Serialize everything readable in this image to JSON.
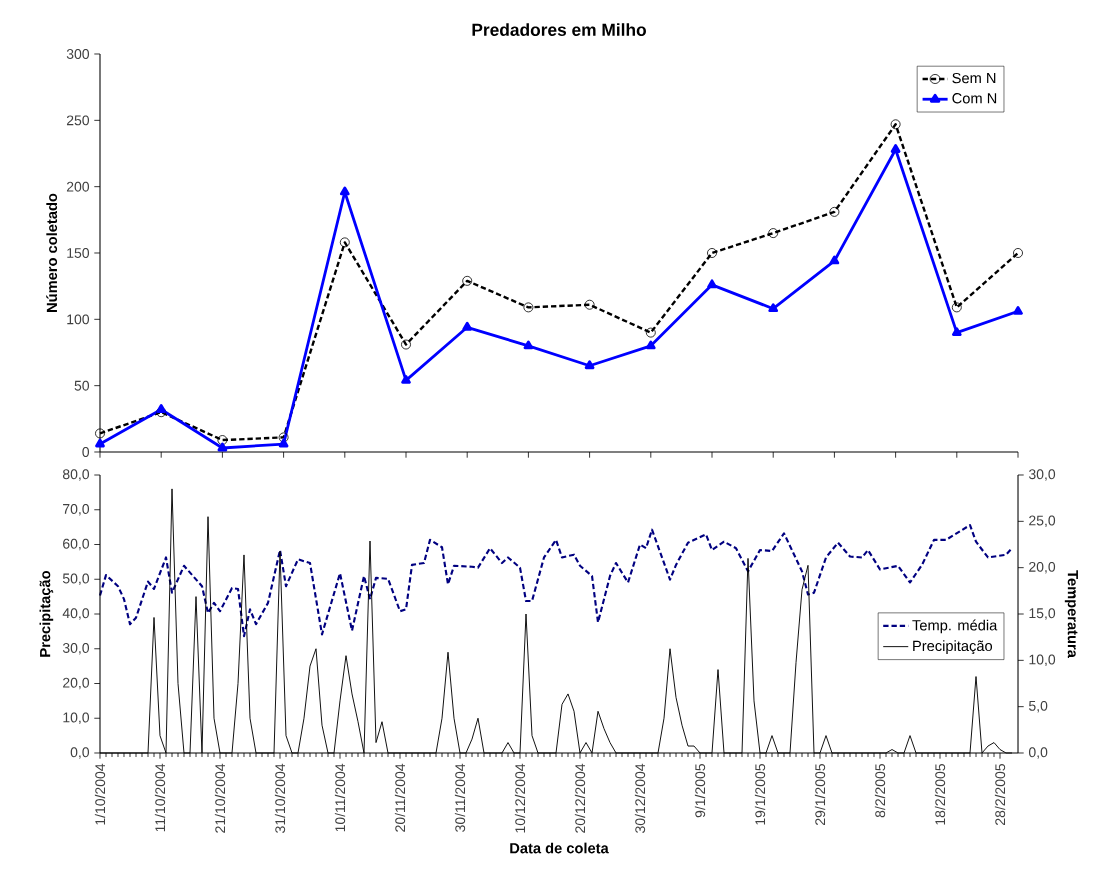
{
  "chart_data": [
    {
      "type": "line",
      "title": "Predadores em Milho",
      "ylabel": "Número coletado",
      "categories": [
        null,
        null,
        null,
        null,
        null,
        null,
        null,
        null,
        null,
        null,
        null,
        null,
        null,
        null,
        null,
        null
      ],
      "series": [
        {
          "name": "Sem N",
          "color": "#000000",
          "marker": "circle",
          "line_style": "dashed",
          "values": [
            14,
            30,
            9,
            11,
            158,
            81,
            129,
            109,
            111,
            90,
            150,
            165,
            181,
            247,
            109,
            150
          ]
        },
        {
          "name": "Com N",
          "color": "#0000ff",
          "marker": "triangle",
          "line_style": "solid",
          "values": [
            6,
            32,
            3,
            6,
            196,
            54,
            94,
            80,
            65,
            80,
            126,
            108,
            144,
            228,
            90,
            106
          ]
        }
      ],
      "ylim": [
        0,
        300
      ],
      "yticks": [
        0,
        50,
        100,
        150,
        200,
        250,
        300
      ],
      "legend": "top right",
      "tick_labels": "y"
    },
    {
      "type": "line",
      "xlabel": "Data de coleta",
      "ylabel": "Precipitação",
      "y2label": "Temperatura",
      "xlim": [
        "2004-10-01",
        "2005-03-03"
      ],
      "xticks": [
        {
          "value": "2004-10-01",
          "label": "1/10/2004"
        },
        {
          "value": "2004-10-11",
          "label": "11/10/2004"
        },
        {
          "value": "2004-10-21",
          "label": "21/10/2004"
        },
        {
          "value": "2004-10-31",
          "label": "31/10/2004"
        },
        {
          "value": "2004-11-10",
          "label": "10/11/2004"
        },
        {
          "value": "2004-11-20",
          "label": "20/11/2004"
        },
        {
          "value": "2004-11-30",
          "label": "30/11/2004"
        },
        {
          "value": "2004-12-10",
          "label": "10/12/2004"
        },
        {
          "value": "2004-12-20",
          "label": "20/12/2004"
        },
        {
          "value": "2004-12-30",
          "label": "30/12/2004"
        },
        {
          "value": "2005-01-09",
          "label": "9/1/2005"
        },
        {
          "value": "2005-01-19",
          "label": "19/1/2005"
        },
        {
          "value": "2005-01-29",
          "label": "29/1/2005"
        },
        {
          "value": "2005-02-08",
          "label": "8/2/2005"
        },
        {
          "value": "2005-02-18",
          "label": "18/2/2005"
        },
        {
          "value": "2005-02-28",
          "label": "28/2/2005"
        }
      ],
      "ylim": [
        0,
        80
      ],
      "yticks": [
        {
          "value": 0,
          "label": "0,0"
        },
        {
          "value": 10,
          "label": "10,0"
        },
        {
          "value": 20,
          "label": "20,0"
        },
        {
          "value": 30,
          "label": "30,0"
        },
        {
          "value": 40,
          "label": "40,0"
        },
        {
          "value": 50,
          "label": "50,0"
        },
        {
          "value": 60,
          "label": "60,0"
        },
        {
          "value": 70,
          "label": "70,0"
        },
        {
          "value": 80,
          "label": "80,0"
        }
      ],
      "y2lim": [
        0,
        30
      ],
      "y2ticks": [
        {
          "value": 0,
          "label": "0,0"
        },
        {
          "value": 5,
          "label": "5,0"
        },
        {
          "value": 10,
          "label": "10,0"
        },
        {
          "value": 15,
          "label": "15,0"
        },
        {
          "value": 20,
          "label": "20,0"
        },
        {
          "value": 25,
          "label": "25,0"
        },
        {
          "value": 30,
          "label": "30,0"
        }
      ],
      "legend": "right",
      "series": [
        {
          "name": "Temp. média",
          "color": "#000080",
          "axis": "y2",
          "line_style": "dashed",
          "x": [
            "2004-10-01",
            "2004-10-02",
            "2004-10-04",
            "2004-10-05",
            "2004-10-06",
            "2004-10-07",
            "2004-10-09",
            "2004-10-10",
            "2004-10-12",
            "2004-10-13",
            "2004-10-15",
            "2004-10-18",
            "2004-10-19",
            "2004-10-20",
            "2004-10-21",
            "2004-10-23",
            "2004-10-24",
            "2004-10-25",
            "2004-10-26",
            "2004-10-27",
            "2004-10-29",
            "2004-10-31",
            "2004-11-01",
            "2004-11-03",
            "2004-11-05",
            "2004-11-07",
            "2004-11-10",
            "2004-11-12",
            "2004-11-14",
            "2004-11-15",
            "2004-11-16",
            "2004-11-18",
            "2004-11-20",
            "2004-11-21",
            "2004-11-22",
            "2004-11-24",
            "2004-11-25",
            "2004-11-27",
            "2004-11-28",
            "2004-11-29",
            "2004-12-02",
            "2004-12-03",
            "2004-12-05",
            "2004-12-07",
            "2004-12-08",
            "2004-12-10",
            "2004-12-11",
            "2004-12-12",
            "2004-12-14",
            "2004-12-16",
            "2004-12-17",
            "2004-12-19",
            "2004-12-20",
            "2004-12-22",
            "2004-12-23",
            "2004-12-25",
            "2004-12-26",
            "2004-12-28",
            "2004-12-30",
            "2004-12-31",
            "2005-01-01",
            "2005-01-04",
            "2005-01-05",
            "2005-01-07",
            "2005-01-10",
            "2005-01-11",
            "2005-01-13",
            "2005-01-15",
            "2005-01-17",
            "2005-01-19",
            "2005-01-21",
            "2005-01-23",
            "2005-01-26",
            "2005-01-27",
            "2005-01-28",
            "2005-01-30",
            "2005-02-01",
            "2005-02-03",
            "2005-02-05",
            "2005-02-06",
            "2005-02-08",
            "2005-02-11",
            "2005-02-13",
            "2005-02-15",
            "2005-02-17",
            "2005-02-19",
            "2005-02-23",
            "2005-02-24",
            "2005-02-26",
            "2005-03-01",
            "2005-03-02"
          ],
          "values": [
            17.0,
            19.2,
            18.0,
            16.6,
            13.9,
            14.6,
            18.5,
            17.7,
            21.1,
            17.3,
            20.2,
            18.0,
            15.1,
            16.2,
            15.3,
            17.8,
            17.7,
            12.6,
            15.5,
            13.9,
            16.2,
            21.9,
            18.0,
            20.9,
            20.5,
            12.8,
            19.4,
            13.2,
            19.1,
            16.6,
            18.9,
            18.8,
            15.3,
            15.5,
            20.3,
            20.5,
            23.0,
            22.2,
            18.2,
            20.2,
            20.1,
            20.0,
            22.1,
            20.5,
            21.1,
            20.0,
            16.4,
            16.4,
            21.1,
            23.0,
            21.1,
            21.4,
            20.2,
            19.1,
            14.1,
            19.1,
            20.5,
            18.4,
            22.5,
            22.1,
            24.1,
            18.7,
            20.3,
            22.7,
            23.6,
            21.9,
            22.8,
            22.1,
            19.6,
            21.9,
            21.8,
            23.7,
            19.6,
            17.1,
            17.3,
            21.1,
            22.7,
            21.2,
            21.1,
            21.9,
            19.8,
            20.2,
            18.4,
            20.3,
            23.0,
            23.0,
            24.6,
            22.8,
            21.1,
            21.4,
            22.1
          ]
        },
        {
          "name": "Precipitação",
          "color": "#000000",
          "x": [
            "2004-10-01",
            "2004-10-09",
            "2004-10-10",
            "2004-10-11",
            "2004-10-12",
            "2004-10-13",
            "2004-10-14",
            "2004-10-15",
            "2004-10-16",
            "2004-10-17",
            "2004-10-18",
            "2004-10-19",
            "2004-10-20",
            "2004-10-21",
            "2004-10-23",
            "2004-10-24",
            "2004-10-25",
            "2004-10-26",
            "2004-10-27",
            "2004-10-30",
            "2004-10-31",
            "2004-11-01",
            "2004-11-02",
            "2004-11-03",
            "2004-11-04",
            "2004-11-05",
            "2004-11-06",
            "2004-11-07",
            "2004-11-08",
            "2004-11-09",
            "2004-11-10",
            "2004-11-11",
            "2004-11-12",
            "2004-11-13",
            "2004-11-14",
            "2004-11-15",
            "2004-11-16",
            "2004-11-17",
            "2004-11-18",
            "2004-11-26",
            "2004-11-27",
            "2004-11-28",
            "2004-11-29",
            "2004-11-30",
            "2004-12-01",
            "2004-12-02",
            "2004-12-03",
            "2004-12-04",
            "2004-12-07",
            "2004-12-08",
            "2004-12-09",
            "2004-12-10",
            "2004-12-11",
            "2004-12-12",
            "2004-12-13",
            "2004-12-16",
            "2004-12-17",
            "2004-12-18",
            "2004-12-19",
            "2004-12-20",
            "2004-12-21",
            "2004-12-22",
            "2004-12-23",
            "2004-12-24",
            "2004-12-25",
            "2004-12-26",
            "2005-01-02",
            "2005-01-03",
            "2005-01-04",
            "2005-01-05",
            "2005-01-06",
            "2005-01-07",
            "2005-01-08",
            "2005-01-09",
            "2005-01-11",
            "2005-01-12",
            "2005-01-13",
            "2005-01-16",
            "2005-01-17",
            "2005-01-18",
            "2005-01-19",
            "2005-01-20",
            "2005-01-21",
            "2005-01-22",
            "2005-01-24",
            "2005-01-25",
            "2005-01-26",
            "2005-01-27",
            "2005-01-28",
            "2005-01-29",
            "2005-01-30",
            "2005-01-31",
            "2005-02-09",
            "2005-02-10",
            "2005-02-11",
            "2005-02-12",
            "2005-02-13",
            "2005-02-14",
            "2005-02-23",
            "2005-02-24",
            "2005-02-25",
            "2005-02-26",
            "2005-02-27",
            "2005-02-28",
            "2005-03-01",
            "2005-03-02"
          ],
          "values": [
            0,
            0,
            39,
            5,
            0,
            76,
            20,
            0,
            0,
            45,
            0,
            68,
            10,
            0,
            0,
            20,
            57,
            10,
            0,
            0,
            58,
            5,
            0,
            0,
            10,
            25,
            30,
            8,
            0,
            0,
            15,
            28,
            17,
            9,
            0,
            61,
            3,
            9,
            0,
            0,
            10,
            29,
            10,
            0,
            0,
            4,
            10,
            0,
            0,
            3,
            0,
            0,
            40,
            5,
            0,
            0,
            14,
            17,
            12,
            0,
            3,
            0,
            12,
            7,
            3,
            0,
            0,
            10,
            30,
            16,
            8,
            2,
            2,
            0,
            0,
            24,
            0,
            0,
            56,
            15,
            0,
            0,
            5,
            0,
            0,
            26,
            47,
            54,
            0,
            0,
            5,
            0,
            0,
            1,
            0,
            0,
            5,
            0,
            0,
            22,
            0,
            2,
            3,
            1,
            0,
            0
          ]
        }
      ]
    }
  ]
}
